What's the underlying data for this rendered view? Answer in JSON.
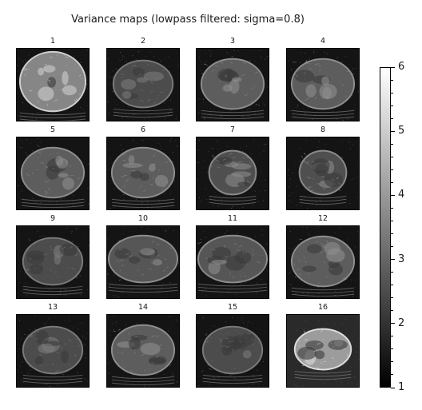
{
  "title": "Variance maps (lowpass filtered: sigma=0.8)",
  "panels": [
    "1",
    "2",
    "3",
    "4",
    "5",
    "6",
    "7",
    "8",
    "9",
    "10",
    "11",
    "12",
    "13",
    "14",
    "15",
    "16"
  ],
  "colorbar": {
    "min": 1,
    "max": 6,
    "ticks": [
      "1",
      "2",
      "3",
      "4",
      "5",
      "6"
    ],
    "colormap": "gray"
  },
  "colors": {
    "background": "#000000",
    "tissue": "#9a9a9a",
    "highlight": "#e6e6e6"
  }
}
